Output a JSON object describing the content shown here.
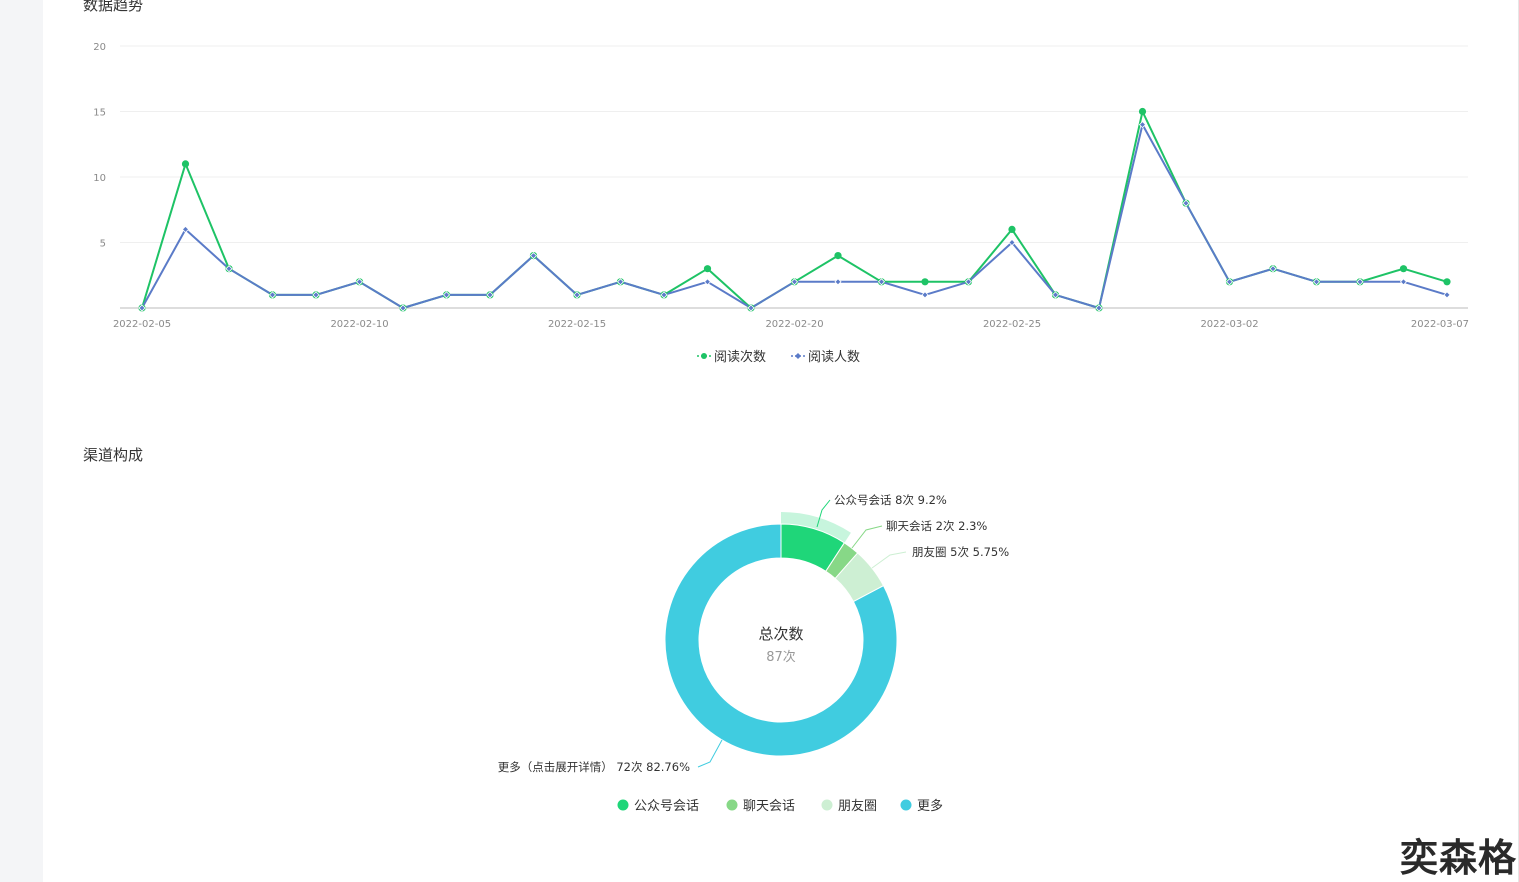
{
  "sections": {
    "trend_title": "数据趋势",
    "channel_title": "渠道构成"
  },
  "watermark": "奕森格",
  "colors": {
    "reads": "#1ec366",
    "readers": "#5b7bc8",
    "channel_official": "#1fd679",
    "channel_chat": "#87d887",
    "channel_moments": "#cdefd3",
    "channel_more": "#40cce0"
  },
  "chart_data": [
    {
      "type": "line",
      "title": "数据趋势",
      "x": [
        "2022-02-05",
        "2022-02-06",
        "2022-02-07",
        "2022-02-08",
        "2022-02-09",
        "2022-02-10",
        "2022-02-11",
        "2022-02-12",
        "2022-02-13",
        "2022-02-14",
        "2022-02-15",
        "2022-02-16",
        "2022-02-17",
        "2022-02-18",
        "2022-02-19",
        "2022-02-20",
        "2022-02-21",
        "2022-02-22",
        "2022-02-23",
        "2022-02-24",
        "2022-02-25",
        "2022-02-26",
        "2022-02-27",
        "2022-02-28",
        "2022-03-01",
        "2022-03-02",
        "2022-03-03",
        "2022-03-04",
        "2022-03-05",
        "2022-03-06",
        "2022-03-07"
      ],
      "x_tick_labels": [
        "2022-02-05",
        "2022-02-10",
        "2022-02-15",
        "2022-02-20",
        "2022-02-25",
        "2022-03-02",
        "2022-03-07"
      ],
      "y_ticks": [
        5,
        10,
        15,
        20
      ],
      "ylim": [
        0,
        20
      ],
      "grid": true,
      "legend_position": "bottom",
      "series": [
        {
          "name": "阅读次数",
          "marker": "circle",
          "values": [
            0,
            11,
            3,
            1,
            1,
            2,
            0,
            1,
            1,
            4,
            1,
            2,
            1,
            3,
            0,
            2,
            4,
            2,
            2,
            2,
            6,
            1,
            0,
            15,
            8,
            2,
            3,
            2,
            2,
            3,
            2
          ]
        },
        {
          "name": "阅读人数",
          "marker": "diamond",
          "values": [
            0,
            6,
            3,
            1,
            1,
            2,
            0,
            1,
            1,
            4,
            1,
            2,
            1,
            2,
            0,
            2,
            2,
            2,
            1,
            2,
            5,
            1,
            0,
            14,
            8,
            2,
            3,
            2,
            2,
            2,
            1
          ]
        }
      ]
    },
    {
      "type": "pie",
      "title": "渠道构成",
      "center_label": "总次数",
      "center_value": "87次",
      "legend_position": "bottom",
      "slices": [
        {
          "name": "公众号会话",
          "label": "公众号会话 8次 9.2%",
          "value": 8,
          "percent": 9.2
        },
        {
          "name": "聊天会话",
          "label": "聊天会话 2次 2.3%",
          "value": 2,
          "percent": 2.3
        },
        {
          "name": "朋友圈",
          "label": "朋友圈 5次 5.75%",
          "value": 5,
          "percent": 5.75
        },
        {
          "name": "更多",
          "label": "更多（点击展开详情） 72次 82.76%",
          "value": 72,
          "percent": 82.76
        }
      ]
    }
  ]
}
